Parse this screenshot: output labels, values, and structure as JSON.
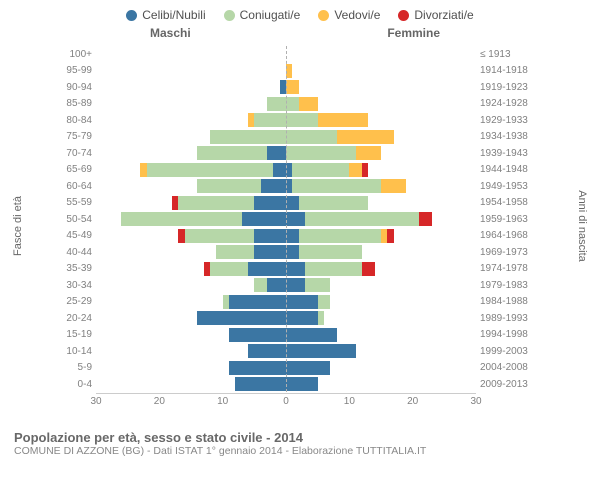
{
  "legend": [
    {
      "label": "Celibi/Nubili",
      "color": "#3b76a3"
    },
    {
      "label": "Coniugati/e",
      "color": "#b6d7a8"
    },
    {
      "label": "Vedovi/e",
      "color": "#ffc04c"
    },
    {
      "label": "Divorziati/e",
      "color": "#d62728"
    }
  ],
  "headers": {
    "left": "Maschi",
    "right": "Femmine"
  },
  "yaxis": {
    "left": "Fasce di età",
    "right": "Anni di nascita"
  },
  "xaxis": {
    "max": 30,
    "ticks": [
      30,
      20,
      10,
      0,
      10,
      20,
      30
    ]
  },
  "colors": {
    "celibi": "#3b76a3",
    "coniugati": "#b6d7a8",
    "vedovi": "#ffc04c",
    "divorziati": "#d62728",
    "grid": "#cccccc",
    "centerline": "#b0b0b0",
    "text": "#808080",
    "bg": "#ffffff"
  },
  "rows": [
    {
      "age": "100+",
      "birth": "≤ 1913",
      "m": {
        "c": 0,
        "k": 0,
        "v": 0,
        "d": 0
      },
      "f": {
        "c": 0,
        "k": 0,
        "v": 0,
        "d": 0
      }
    },
    {
      "age": "95-99",
      "birth": "1914-1918",
      "m": {
        "c": 0,
        "k": 0,
        "v": 0,
        "d": 0
      },
      "f": {
        "c": 0,
        "k": 0,
        "v": 1,
        "d": 0
      }
    },
    {
      "age": "90-94",
      "birth": "1919-1923",
      "m": {
        "c": 1,
        "k": 0,
        "v": 0,
        "d": 0
      },
      "f": {
        "c": 0,
        "k": 0,
        "v": 2,
        "d": 0
      }
    },
    {
      "age": "85-89",
      "birth": "1924-1928",
      "m": {
        "c": 0,
        "k": 3,
        "v": 0,
        "d": 0
      },
      "f": {
        "c": 0,
        "k": 2,
        "v": 3,
        "d": 0
      }
    },
    {
      "age": "80-84",
      "birth": "1929-1933",
      "m": {
        "c": 0,
        "k": 5,
        "v": 1,
        "d": 0
      },
      "f": {
        "c": 0,
        "k": 5,
        "v": 8,
        "d": 0
      }
    },
    {
      "age": "75-79",
      "birth": "1934-1938",
      "m": {
        "c": 0,
        "k": 12,
        "v": 0,
        "d": 0
      },
      "f": {
        "c": 0,
        "k": 8,
        "v": 9,
        "d": 0
      }
    },
    {
      "age": "70-74",
      "birth": "1939-1943",
      "m": {
        "c": 3,
        "k": 11,
        "v": 0,
        "d": 0
      },
      "f": {
        "c": 0,
        "k": 11,
        "v": 4,
        "d": 0
      }
    },
    {
      "age": "65-69",
      "birth": "1944-1948",
      "m": {
        "c": 2,
        "k": 20,
        "v": 1,
        "d": 0
      },
      "f": {
        "c": 1,
        "k": 9,
        "v": 2,
        "d": 1
      }
    },
    {
      "age": "60-64",
      "birth": "1949-1953",
      "m": {
        "c": 4,
        "k": 10,
        "v": 0,
        "d": 0
      },
      "f": {
        "c": 1,
        "k": 14,
        "v": 4,
        "d": 0
      }
    },
    {
      "age": "55-59",
      "birth": "1954-1958",
      "m": {
        "c": 5,
        "k": 12,
        "v": 0,
        "d": 1
      },
      "f": {
        "c": 2,
        "k": 11,
        "v": 0,
        "d": 0
      }
    },
    {
      "age": "50-54",
      "birth": "1959-1963",
      "m": {
        "c": 7,
        "k": 19,
        "v": 0,
        "d": 0
      },
      "f": {
        "c": 3,
        "k": 18,
        "v": 0,
        "d": 2
      }
    },
    {
      "age": "45-49",
      "birth": "1964-1968",
      "m": {
        "c": 5,
        "k": 11,
        "v": 0,
        "d": 1
      },
      "f": {
        "c": 2,
        "k": 13,
        "v": 1,
        "d": 1
      }
    },
    {
      "age": "40-44",
      "birth": "1969-1973",
      "m": {
        "c": 5,
        "k": 6,
        "v": 0,
        "d": 0
      },
      "f": {
        "c": 2,
        "k": 10,
        "v": 0,
        "d": 0
      }
    },
    {
      "age": "35-39",
      "birth": "1974-1978",
      "m": {
        "c": 6,
        "k": 6,
        "v": 0,
        "d": 1
      },
      "f": {
        "c": 3,
        "k": 9,
        "v": 0,
        "d": 2
      }
    },
    {
      "age": "30-34",
      "birth": "1979-1983",
      "m": {
        "c": 3,
        "k": 2,
        "v": 0,
        "d": 0
      },
      "f": {
        "c": 3,
        "k": 4,
        "v": 0,
        "d": 0
      }
    },
    {
      "age": "25-29",
      "birth": "1984-1988",
      "m": {
        "c": 9,
        "k": 1,
        "v": 0,
        "d": 0
      },
      "f": {
        "c": 5,
        "k": 2,
        "v": 0,
        "d": 0
      }
    },
    {
      "age": "20-24",
      "birth": "1989-1993",
      "m": {
        "c": 14,
        "k": 0,
        "v": 0,
        "d": 0
      },
      "f": {
        "c": 5,
        "k": 1,
        "v": 0,
        "d": 0
      }
    },
    {
      "age": "15-19",
      "birth": "1994-1998",
      "m": {
        "c": 9,
        "k": 0,
        "v": 0,
        "d": 0
      },
      "f": {
        "c": 8,
        "k": 0,
        "v": 0,
        "d": 0
      }
    },
    {
      "age": "10-14",
      "birth": "1999-2003",
      "m": {
        "c": 6,
        "k": 0,
        "v": 0,
        "d": 0
      },
      "f": {
        "c": 11,
        "k": 0,
        "v": 0,
        "d": 0
      }
    },
    {
      "age": "5-9",
      "birth": "2004-2008",
      "m": {
        "c": 9,
        "k": 0,
        "v": 0,
        "d": 0
      },
      "f": {
        "c": 7,
        "k": 0,
        "v": 0,
        "d": 0
      }
    },
    {
      "age": "0-4",
      "birth": "2009-2013",
      "m": {
        "c": 8,
        "k": 0,
        "v": 0,
        "d": 0
      },
      "f": {
        "c": 5,
        "k": 0,
        "v": 0,
        "d": 0
      }
    }
  ],
  "title": "Popolazione per età, sesso e stato civile - 2014",
  "subtitle": "COMUNE DI AZZONE (BG) - Dati ISTAT 1° gennaio 2014 - Elaborazione TUTTITALIA.IT"
}
